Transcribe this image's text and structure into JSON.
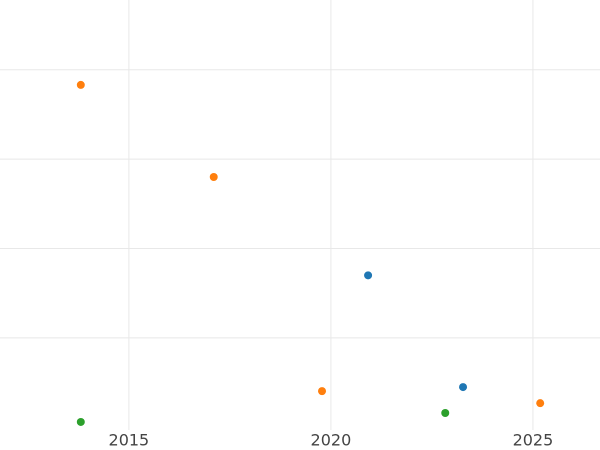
{
  "chart_data": {
    "type": "scatter",
    "series": [
      {
        "color": "#ff7f0e",
        "x": [
          2013.81,
          2017.1,
          2019.78,
          2025.18
        ],
        "values": [
          3.83,
          2.8,
          0.405,
          0.27
        ]
      },
      {
        "color": "#1f77b4",
        "x": [
          2020.92,
          2023.27
        ],
        "values": [
          1.7,
          0.45
        ]
      },
      {
        "color": "#2ca02c",
        "x": [
          2013.81,
          2022.83
        ],
        "values": [
          0.06,
          0.16
        ]
      }
    ],
    "xlim": [
      2011.81,
      2026.66
    ],
    "xticks": [
      2015,
      2020,
      2025
    ],
    "ylim": [
      -0.03,
      4.78
    ],
    "yticks": [
      1,
      2,
      3,
      4
    ],
    "grid": true
  }
}
